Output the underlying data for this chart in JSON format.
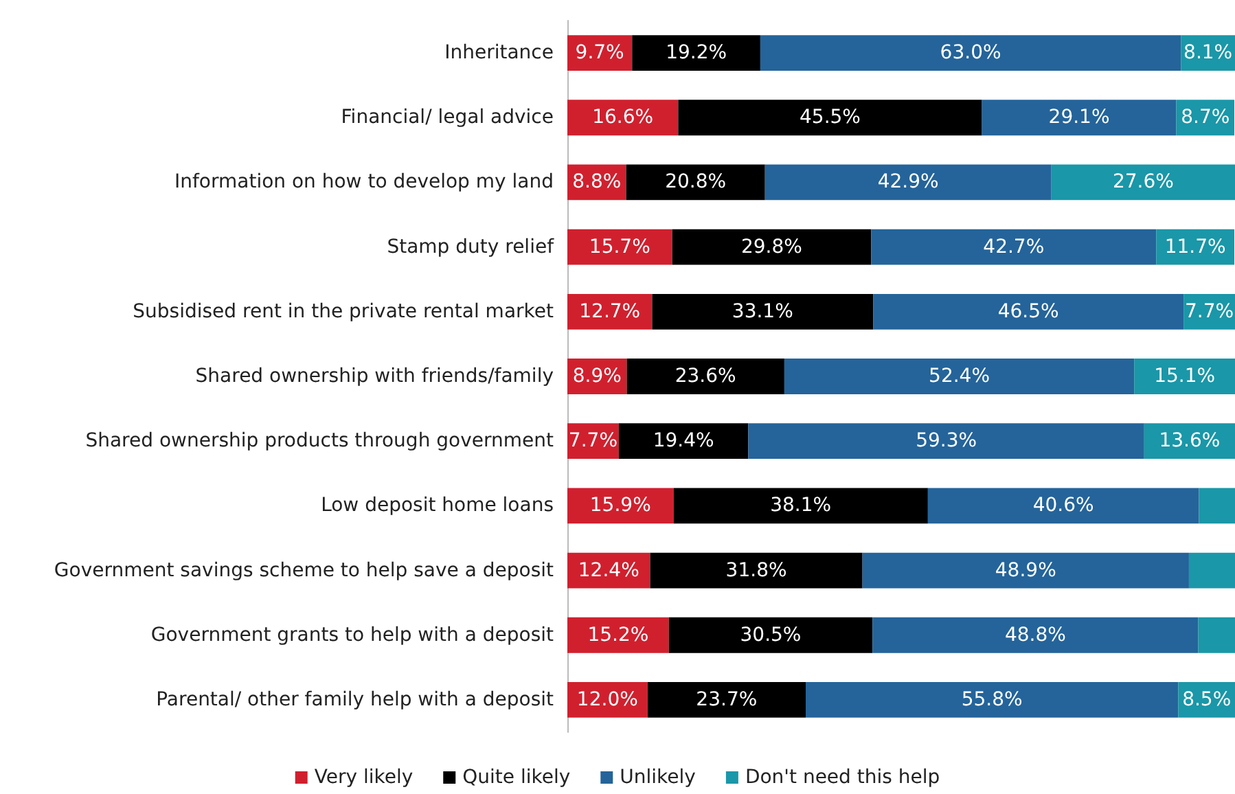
{
  "chart_data": {
    "type": "bar",
    "orientation": "horizontal",
    "stacked": true,
    "legend": "bottom",
    "grid": false,
    "tick_labels": "y",
    "xlim": [
      0,
      100
    ],
    "categories": [
      "Inheritance",
      "Financial/ legal advice",
      "Information on how to develop my land",
      "Stamp duty relief",
      "Subsidised rent in the private rental market",
      "Shared ownership with friends/family",
      "Shared ownership products through government",
      "Low deposit home loans",
      "Government savings scheme to help save a deposit",
      "Government grants to help with a deposit",
      "Parental/ other family help with a deposit"
    ],
    "series": [
      {
        "name": "Very likely",
        "color": "#d0202e",
        "values": [
          9.7,
          16.6,
          8.8,
          15.7,
          12.7,
          8.9,
          7.7,
          15.9,
          12.4,
          15.2,
          12.0
        ],
        "value_labels": [
          "9.7%",
          "16.6%",
          "8.8%",
          "15.7%",
          "12.7%",
          "8.9%",
          "7.7%",
          "15.9%",
          "12.4%",
          "15.2%",
          "12.0%"
        ]
      },
      {
        "name": "Quite likely",
        "color": "#000000",
        "values": [
          19.2,
          45.5,
          20.8,
          29.8,
          33.1,
          23.6,
          19.4,
          38.1,
          31.8,
          30.5,
          23.7
        ],
        "value_labels": [
          "19.2%",
          "45.5%",
          "20.8%",
          "29.8%",
          "33.1%",
          "23.6%",
          "19.4%",
          "38.1%",
          "31.8%",
          "30.5%",
          "23.7%"
        ]
      },
      {
        "name": "Unlikely",
        "color": "#24649a",
        "values": [
          63.0,
          29.1,
          42.9,
          42.7,
          46.5,
          52.4,
          59.3,
          40.6,
          48.9,
          48.8,
          55.8
        ],
        "value_labels": [
          "63.0%",
          "29.1%",
          "42.9%",
          "42.7%",
          "46.5%",
          "52.4%",
          "59.3%",
          "40.6%",
          "48.9%",
          "48.8%",
          "55.8%"
        ]
      },
      {
        "name": "Don't need this help",
        "color": "#1a97a8",
        "values": [
          8.1,
          8.7,
          27.6,
          11.7,
          7.7,
          15.1,
          13.6,
          5.4,
          6.9,
          5.5,
          8.5
        ],
        "value_labels": [
          "8.1%",
          "8.7%",
          "27.6%",
          "11.7%",
          "7.7%",
          "15.1%",
          "13.6%",
          null,
          null,
          null,
          "8.5%"
        ]
      }
    ]
  }
}
